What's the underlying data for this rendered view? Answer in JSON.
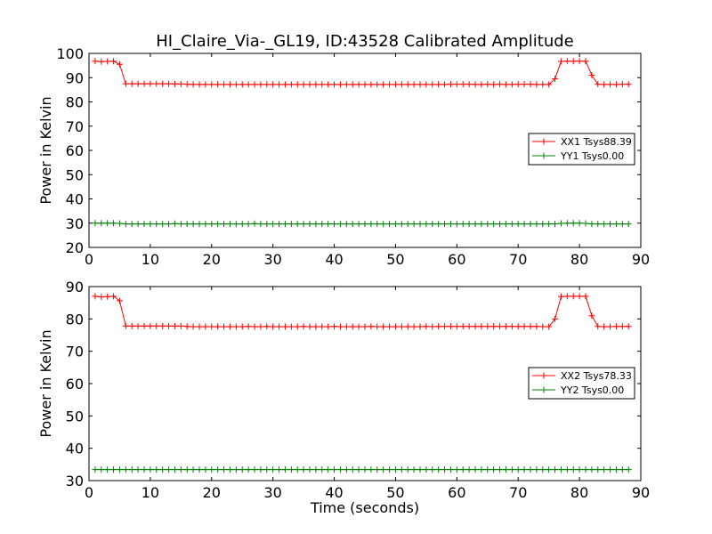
{
  "figure": {
    "title": "HI_Claire_Via-_GL19, ID:43528 Calibrated Amplitude",
    "xlabel": "Time (seconds)",
    "colors": {
      "xx": "#ff0000",
      "yy": "#008000",
      "axes": "#000000"
    }
  },
  "chart_data": [
    {
      "type": "line",
      "title": "HI_Claire_Via-_GL19, ID:43528 Calibrated Amplitude",
      "xlabel": "",
      "ylabel": "Power in Kelvin",
      "xlim": [
        0,
        90
      ],
      "ylim": [
        20,
        100
      ],
      "xticks": [
        0,
        10,
        20,
        30,
        40,
        50,
        60,
        70,
        80,
        90
      ],
      "yticks": [
        20,
        30,
        40,
        50,
        60,
        70,
        80,
        90,
        100
      ],
      "grid": false,
      "legend_position": "center-right",
      "marker": "+",
      "series": [
        {
          "name": "XX1 Tsys88.39",
          "color": "#ff0000",
          "x": [
            1,
            2,
            3,
            4,
            5,
            6,
            7,
            8,
            9,
            10,
            11,
            12,
            13,
            14,
            15,
            16,
            17,
            18,
            19,
            20,
            21,
            22,
            23,
            24,
            25,
            26,
            27,
            28,
            29,
            30,
            31,
            32,
            33,
            34,
            35,
            36,
            37,
            38,
            39,
            40,
            41,
            42,
            43,
            44,
            45,
            46,
            47,
            48,
            49,
            50,
            51,
            52,
            53,
            54,
            55,
            56,
            57,
            58,
            59,
            60,
            61,
            62,
            63,
            64,
            65,
            66,
            67,
            68,
            69,
            70,
            71,
            72,
            73,
            74,
            75,
            76,
            77,
            78,
            79,
            80,
            81,
            82,
            83,
            84,
            85,
            86,
            87,
            88
          ],
          "y": [
            96.8,
            96.6,
            96.7,
            96.8,
            95.5,
            87.5,
            87.5,
            87.5,
            87.5,
            87.5,
            87.5,
            87.5,
            87.5,
            87.4,
            87.4,
            87.3,
            87.2,
            87.2,
            87.2,
            87.2,
            87.2,
            87.2,
            87.2,
            87.2,
            87.2,
            87.2,
            87.2,
            87.2,
            87.2,
            87.2,
            87.2,
            87.2,
            87.2,
            87.2,
            87.2,
            87.2,
            87.2,
            87.2,
            87.2,
            87.2,
            87.2,
            87.2,
            87.2,
            87.2,
            87.2,
            87.2,
            87.2,
            87.2,
            87.2,
            87.2,
            87.2,
            87.2,
            87.2,
            87.2,
            87.2,
            87.2,
            87.2,
            87.2,
            87.3,
            87.3,
            87.3,
            87.3,
            87.2,
            87.2,
            87.3,
            87.2,
            87.3,
            87.2,
            87.2,
            87.3,
            87.3,
            87.3,
            87.2,
            87.2,
            87.2,
            89.5,
            96.7,
            96.8,
            96.8,
            96.8,
            96.8,
            91.0,
            87.3,
            87.2,
            87.2,
            87.2,
            87.3,
            87.3
          ]
        },
        {
          "name": "YY1 Tsys0.00",
          "color": "#008000",
          "x": [
            1,
            2,
            3,
            4,
            5,
            6,
            7,
            8,
            9,
            10,
            11,
            12,
            13,
            14,
            15,
            16,
            17,
            18,
            19,
            20,
            21,
            22,
            23,
            24,
            25,
            26,
            27,
            28,
            29,
            30,
            31,
            32,
            33,
            34,
            35,
            36,
            37,
            38,
            39,
            40,
            41,
            42,
            43,
            44,
            45,
            46,
            47,
            48,
            49,
            50,
            51,
            52,
            53,
            54,
            55,
            56,
            57,
            58,
            59,
            60,
            61,
            62,
            63,
            64,
            65,
            66,
            67,
            68,
            69,
            70,
            71,
            72,
            73,
            74,
            75,
            76,
            77,
            78,
            79,
            80,
            81,
            82,
            83,
            84,
            85,
            86,
            87,
            88
          ],
          "y": [
            30.0,
            30.0,
            30.0,
            30.0,
            29.9,
            29.7,
            29.7,
            29.7,
            29.7,
            29.7,
            29.7,
            29.7,
            29.7,
            29.8,
            29.7,
            29.7,
            29.7,
            29.7,
            29.7,
            29.7,
            29.7,
            29.7,
            29.7,
            29.7,
            29.7,
            29.7,
            29.8,
            29.7,
            29.7,
            29.7,
            29.7,
            29.7,
            29.7,
            29.7,
            29.7,
            29.7,
            29.7,
            29.7,
            29.7,
            29.7,
            29.7,
            29.7,
            29.7,
            29.7,
            29.7,
            29.7,
            29.7,
            29.7,
            29.7,
            29.7,
            29.7,
            29.7,
            29.7,
            29.7,
            29.7,
            29.7,
            29.7,
            29.7,
            29.7,
            29.7,
            29.7,
            29.7,
            29.7,
            29.7,
            29.7,
            29.7,
            29.7,
            29.7,
            29.7,
            29.7,
            29.7,
            29.7,
            29.7,
            29.7,
            29.7,
            29.7,
            29.9,
            30.0,
            30.0,
            30.0,
            29.9,
            29.7,
            29.7,
            29.7,
            29.7,
            29.7,
            29.7,
            29.7
          ]
        }
      ]
    },
    {
      "type": "line",
      "title": "",
      "xlabel": "Time (seconds)",
      "ylabel": "Power in Kelvin",
      "xlim": [
        0,
        90
      ],
      "ylim": [
        30,
        90
      ],
      "xticks": [
        0,
        10,
        20,
        30,
        40,
        50,
        60,
        70,
        80,
        90
      ],
      "yticks": [
        30,
        40,
        50,
        60,
        70,
        80,
        90
      ],
      "grid": false,
      "legend_position": "center-right",
      "marker": "+",
      "series": [
        {
          "name": "XX2 Tsys78.33",
          "color": "#ff0000",
          "x": [
            1,
            2,
            3,
            4,
            5,
            6,
            7,
            8,
            9,
            10,
            11,
            12,
            13,
            14,
            15,
            16,
            17,
            18,
            19,
            20,
            21,
            22,
            23,
            24,
            25,
            26,
            27,
            28,
            29,
            30,
            31,
            32,
            33,
            34,
            35,
            36,
            37,
            38,
            39,
            40,
            41,
            42,
            43,
            44,
            45,
            46,
            47,
            48,
            49,
            50,
            51,
            52,
            53,
            54,
            55,
            56,
            57,
            58,
            59,
            60,
            61,
            62,
            63,
            64,
            65,
            66,
            67,
            68,
            69,
            70,
            71,
            72,
            73,
            74,
            75,
            76,
            77,
            78,
            79,
            80,
            81,
            82,
            83,
            84,
            85,
            86,
            87,
            88
          ],
          "y": [
            87.0,
            86.8,
            86.9,
            87.0,
            85.6,
            77.8,
            77.8,
            77.8,
            77.8,
            77.8,
            77.8,
            77.8,
            77.8,
            77.8,
            77.8,
            77.7,
            77.6,
            77.6,
            77.6,
            77.6,
            77.6,
            77.6,
            77.6,
            77.6,
            77.6,
            77.7,
            77.6,
            77.6,
            77.7,
            77.6,
            77.6,
            77.6,
            77.6,
            77.6,
            77.7,
            77.6,
            77.6,
            77.6,
            77.6,
            77.7,
            77.6,
            77.6,
            77.6,
            77.6,
            77.6,
            77.7,
            77.6,
            77.6,
            77.6,
            77.6,
            77.6,
            77.6,
            77.6,
            77.6,
            77.7,
            77.6,
            77.7,
            77.7,
            77.7,
            77.7,
            77.7,
            77.7,
            77.7,
            77.7,
            77.7,
            77.7,
            77.7,
            77.7,
            77.7,
            77.7,
            77.7,
            77.7,
            77.7,
            77.6,
            77.6,
            80.0,
            86.9,
            87.0,
            87.0,
            87.0,
            87.0,
            81.0,
            77.7,
            77.6,
            77.6,
            77.7,
            77.7,
            77.7
          ]
        },
        {
          "name": "YY2 Tsys0.00",
          "color": "#008000",
          "x": [
            1,
            2,
            3,
            4,
            5,
            6,
            7,
            8,
            9,
            10,
            11,
            12,
            13,
            14,
            15,
            16,
            17,
            18,
            19,
            20,
            21,
            22,
            23,
            24,
            25,
            26,
            27,
            28,
            29,
            30,
            31,
            32,
            33,
            34,
            35,
            36,
            37,
            38,
            39,
            40,
            41,
            42,
            43,
            44,
            45,
            46,
            47,
            48,
            49,
            50,
            51,
            52,
            53,
            54,
            55,
            56,
            57,
            58,
            59,
            60,
            61,
            62,
            63,
            64,
            65,
            66,
            67,
            68,
            69,
            70,
            71,
            72,
            73,
            74,
            75,
            76,
            77,
            78,
            79,
            80,
            81,
            82,
            83,
            84,
            85,
            86,
            87,
            88
          ],
          "y": [
            33.4,
            33.4,
            33.4,
            33.4,
            33.4,
            33.4,
            33.4,
            33.4,
            33.4,
            33.4,
            33.4,
            33.4,
            33.4,
            33.4,
            33.4,
            33.4,
            33.4,
            33.4,
            33.4,
            33.4,
            33.4,
            33.4,
            33.4,
            33.4,
            33.4,
            33.4,
            33.4,
            33.4,
            33.4,
            33.4,
            33.4,
            33.4,
            33.4,
            33.4,
            33.4,
            33.4,
            33.4,
            33.4,
            33.4,
            33.4,
            33.4,
            33.4,
            33.4,
            33.4,
            33.4,
            33.4,
            33.4,
            33.4,
            33.4,
            33.4,
            33.4,
            33.4,
            33.4,
            33.4,
            33.4,
            33.4,
            33.4,
            33.4,
            33.4,
            33.4,
            33.4,
            33.4,
            33.4,
            33.4,
            33.4,
            33.4,
            33.4,
            33.4,
            33.4,
            33.4,
            33.4,
            33.4,
            33.4,
            33.4,
            33.4,
            33.4,
            33.4,
            33.4,
            33.4,
            33.4,
            33.4,
            33.4,
            33.4,
            33.4,
            33.4,
            33.4,
            33.4,
            33.4
          ]
        }
      ]
    }
  ]
}
